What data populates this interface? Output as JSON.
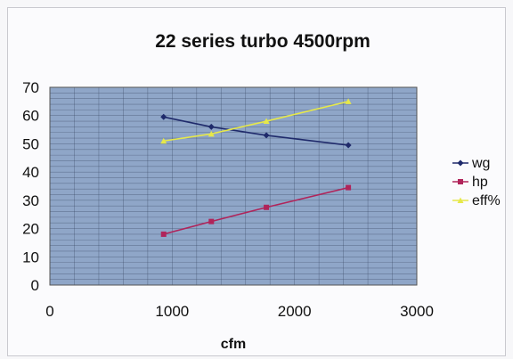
{
  "chart_data": {
    "type": "line",
    "title": "22 series turbo 4500rpm",
    "xlabel": "cfm",
    "ylabel": "",
    "xlim": [
      0,
      3000
    ],
    "ylim": [
      0,
      70
    ],
    "x_ticks": [
      0,
      1000,
      2000,
      3000
    ],
    "y_ticks": [
      0,
      10,
      20,
      30,
      40,
      50,
      60,
      70
    ],
    "grid": true,
    "legend_position": "right",
    "series": [
      {
        "name": "wg",
        "color": "#1f2a6b",
        "marker": "diamond",
        "x": [
          930,
          1320,
          1770,
          2440
        ],
        "y": [
          59.5,
          56,
          53,
          49.5
        ]
      },
      {
        "name": "hp",
        "color": "#b0245a",
        "marker": "square",
        "x": [
          930,
          1320,
          1770,
          2440
        ],
        "y": [
          18,
          22.5,
          27.5,
          34.5
        ]
      },
      {
        "name": "eff%",
        "color": "#e6e84a",
        "marker": "triangle",
        "x": [
          930,
          1320,
          1770,
          2440
        ],
        "y": [
          51,
          53.5,
          58,
          65
        ]
      }
    ],
    "plot_background": "#8fa6c8",
    "grid_color": "#3c4a66"
  }
}
